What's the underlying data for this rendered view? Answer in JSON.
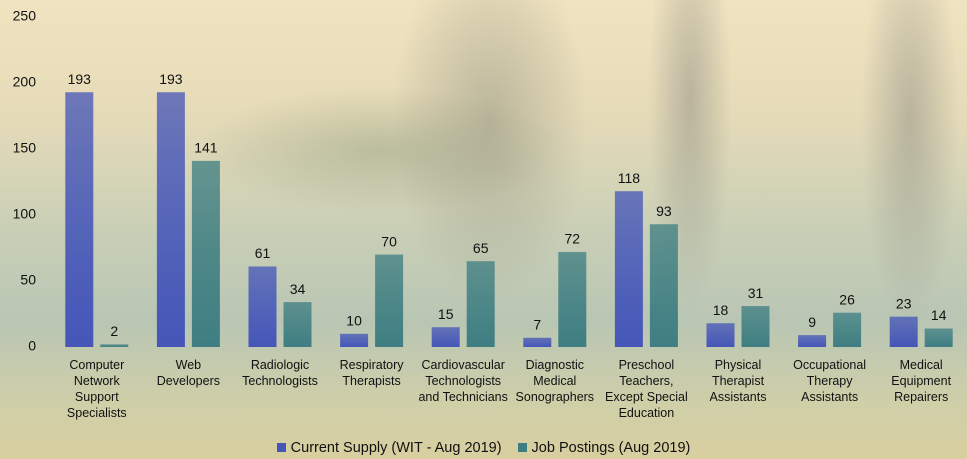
{
  "chart_data": {
    "type": "bar",
    "categories": [
      "Computer Network Support Specialists",
      "Web Developers",
      "Radiologic Technologists",
      "Respiratory Therapists",
      "Cardiovascular Technologists and Technicians",
      "Diagnostic Medical Sonographers",
      "Preschool Teachers, Except Special Education",
      "Physical Therapist Assistants",
      "Occupational Therapy Assistants",
      "Medical Equipment Repairers"
    ],
    "series": [
      {
        "name": "Current Supply (WIT - Aug 2019)",
        "color": "#4556b8",
        "values": [
          193,
          193,
          61,
          10,
          15,
          7,
          118,
          18,
          9,
          23
        ]
      },
      {
        "name": "Job Postings (Aug 2019)",
        "color": "#3e7e82",
        "values": [
          2,
          141,
          34,
          70,
          65,
          72,
          93,
          31,
          26,
          14
        ]
      }
    ],
    "ylim": [
      0,
      250
    ],
    "yticks": [
      0,
      50,
      100,
      150,
      200,
      250
    ],
    "grid": false,
    "legend": "bottom"
  }
}
